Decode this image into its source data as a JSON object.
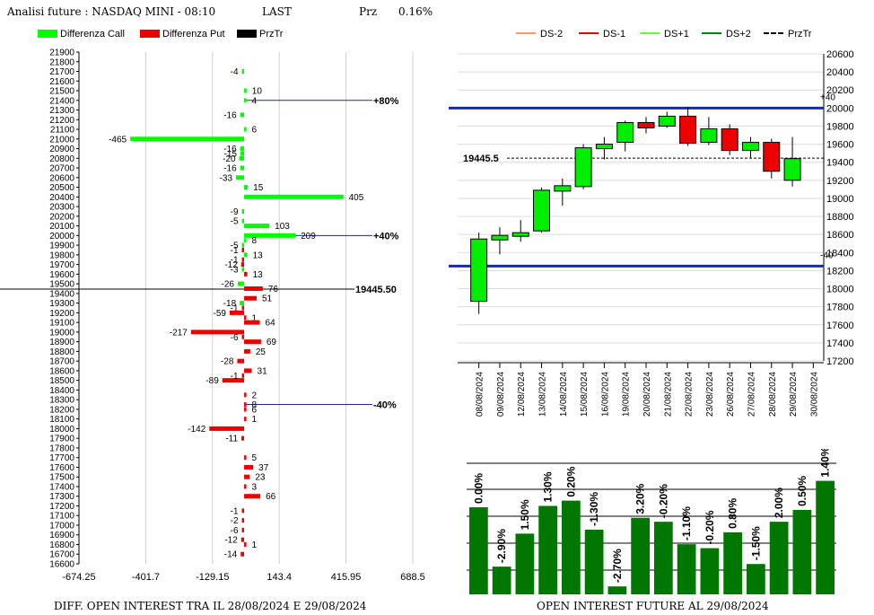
{
  "header": {
    "title": "Analisi future : NASDAQ MINI - 08:10",
    "last_label": "LAST",
    "prz_label": "Prz",
    "prz_value": "0.16%"
  },
  "left_legend": [
    {
      "label": "Differenza Call",
      "color": "#00ff00"
    },
    {
      "label": "Differenza Put",
      "color": "#ee0000"
    },
    {
      "label": "PrzTr",
      "color": "#000000"
    }
  ],
  "right_legend": [
    {
      "label": "DS-2",
      "color": "#ff9966",
      "dashed": false
    },
    {
      "label": "DS-1",
      "color": "#ee0000",
      "dashed": false
    },
    {
      "label": "DS+1",
      "color": "#66ff33",
      "dashed": false
    },
    {
      "label": "DS+2",
      "color": "#008800",
      "dashed": false
    },
    {
      "label": "PrzTr",
      "color": "#000000",
      "dashed": true
    }
  ],
  "captions": {
    "left": "DIFF. OPEN INTEREST TRA IL 28/08/2024 E 29/08/2024",
    "right": "OPEN INTEREST FUTURE AL 29/08/2024"
  },
  "chart_data": [
    {
      "type": "bar",
      "orientation": "horizontal",
      "strike_ticks": [
        21900,
        21800,
        21700,
        21600,
        21500,
        21400,
        21300,
        21200,
        21100,
        21000,
        20900,
        20800,
        20700,
        20600,
        20500,
        20400,
        20300,
        20200,
        20100,
        20000,
        19900,
        19800,
        19700,
        19600,
        19500,
        19400,
        19300,
        19200,
        19100,
        19000,
        18900,
        18800,
        18700,
        18600,
        18500,
        18400,
        18300,
        18200,
        18100,
        18000,
        17900,
        17800,
        17700,
        17600,
        17500,
        17400,
        17300,
        17200,
        17100,
        17000,
        16900,
        16800,
        16700,
        16600
      ],
      "x_tick_labels": [
        "-674.25",
        "-401.7",
        "-129.15",
        "143.4",
        "415.95",
        "688.5"
      ],
      "xlim": [
        -674.25,
        688.5
      ],
      "ylim": [
        16600,
        21900
      ],
      "calls": [
        {
          "strike": 21700,
          "value": -4
        },
        {
          "strike": 21500,
          "value": 10
        },
        {
          "strike": 21400,
          "value": 4
        },
        {
          "strike": 21250,
          "value": -16
        },
        {
          "strike": 21100,
          "value": 6
        },
        {
          "strike": 21000,
          "value": -465
        },
        {
          "strike": 20900,
          "value": -16
        },
        {
          "strike": 20850,
          "value": -15
        },
        {
          "strike": 20800,
          "value": -20
        },
        {
          "strike": 20700,
          "value": -16
        },
        {
          "strike": 20600,
          "value": -33
        },
        {
          "strike": 20500,
          "value": 15
        },
        {
          "strike": 20400,
          "value": 405
        },
        {
          "strike": 20250,
          "value": -9
        },
        {
          "strike": 20150,
          "value": -5
        },
        {
          "strike": 20100,
          "value": 103
        },
        {
          "strike": 20000,
          "value": 209
        },
        {
          "strike": 19950,
          "value": 8
        },
        {
          "strike": 19900,
          "value": -5
        },
        {
          "strike": 19800,
          "value": 13
        },
        {
          "strike": 19650,
          "value": -3
        },
        {
          "strike": 19500,
          "value": -26
        },
        {
          "strike": 19300,
          "value": -18
        }
      ],
      "puts": [
        {
          "strike": 19850,
          "value": -1
        },
        {
          "strike": 19750,
          "value": -1
        },
        {
          "strike": 19700,
          "value": -12
        },
        {
          "strike": 19600,
          "value": 13
        },
        {
          "strike": 19450,
          "value": 76
        },
        {
          "strike": 19350,
          "value": 51
        },
        {
          "strike": 19250,
          "value": -1
        },
        {
          "strike": 19200,
          "value": -59
        },
        {
          "strike": 19150,
          "value": 1
        },
        {
          "strike": 19100,
          "value": 64
        },
        {
          "strike": 19000,
          "value": -217
        },
        {
          "strike": 18950,
          "value": -6
        },
        {
          "strike": 18900,
          "value": 69
        },
        {
          "strike": 18800,
          "value": 25
        },
        {
          "strike": 18700,
          "value": -28
        },
        {
          "strike": 18600,
          "value": 31
        },
        {
          "strike": 18500,
          "value": -89
        },
        {
          "strike": 18550,
          "value": -1
        },
        {
          "strike": 18350,
          "value": 2
        },
        {
          "strike": 18250,
          "value": 8
        },
        {
          "strike": 18200,
          "value": 6
        },
        {
          "strike": 18100,
          "value": 1
        },
        {
          "strike": 18000,
          "value": -142
        },
        {
          "strike": 17900,
          "value": -11
        },
        {
          "strike": 17700,
          "value": 5
        },
        {
          "strike": 17600,
          "value": 37
        },
        {
          "strike": 17500,
          "value": 23
        },
        {
          "strike": 17400,
          "value": 3
        },
        {
          "strike": 17300,
          "value": 66
        },
        {
          "strike": 17150,
          "value": -1
        },
        {
          "strike": 17050,
          "value": -2
        },
        {
          "strike": 16950,
          "value": -6
        },
        {
          "strike": 16850,
          "value": -12
        },
        {
          "strike": 16800,
          "value": 1
        },
        {
          "strike": 16700,
          "value": -14
        }
      ],
      "przTr": {
        "value": 19445.5,
        "label": "19445.50"
      },
      "levels": [
        {
          "label": "+80%",
          "strike": 21400
        },
        {
          "label": "+40%",
          "strike": 20000
        },
        {
          "label": "-40%",
          "strike": 18250
        }
      ]
    },
    {
      "type": "candlestick",
      "dates": [
        "08/08/2024",
        "09/08/2024",
        "12/08/2024",
        "13/08/2024",
        "14/08/2024",
        "15/08/2024",
        "16/08/2024",
        "19/08/2024",
        "20/08/2024",
        "21/08/2024",
        "22/08/2024",
        "23/08/2024",
        "26/08/2024",
        "27/08/2024",
        "28/08/2024",
        "29/08/2024",
        "30/08/2024"
      ],
      "candles": [
        {
          "open": 17860,
          "close": 18550,
          "high": 18620,
          "low": 17720
        },
        {
          "open": 18540,
          "close": 18590,
          "high": 18680,
          "low": 18380
        },
        {
          "open": 18580,
          "close": 18620,
          "high": 18760,
          "low": 18520
        },
        {
          "open": 18640,
          "close": 19090,
          "high": 19120,
          "low": 18620
        },
        {
          "open": 19080,
          "close": 19140,
          "high": 19220,
          "low": 18920
        },
        {
          "open": 19130,
          "close": 19560,
          "high": 19600,
          "low": 19100
        },
        {
          "open": 19550,
          "close": 19600,
          "high": 19680,
          "low": 19430
        },
        {
          "open": 19620,
          "close": 19840,
          "high": 19860,
          "low": 19520
        },
        {
          "open": 19840,
          "close": 19780,
          "high": 19900,
          "low": 19720
        },
        {
          "open": 19800,
          "close": 19910,
          "high": 19960,
          "low": 19780
        },
        {
          "open": 19910,
          "close": 19610,
          "high": 20010,
          "low": 19580
        },
        {
          "open": 19620,
          "close": 19770,
          "high": 19900,
          "low": 19590
        },
        {
          "open": 19770,
          "close": 19530,
          "high": 19820,
          "low": 19480
        },
        {
          "open": 19530,
          "close": 19620,
          "high": 19680,
          "low": 19450
        },
        {
          "open": 19620,
          "close": 19300,
          "high": 19660,
          "low": 19220
        },
        {
          "open": 19200,
          "close": 19440,
          "high": 19680,
          "low": 19130
        },
        null
      ],
      "ylim": [
        17200,
        20600
      ],
      "y_ticks": [
        17200,
        17400,
        17600,
        17800,
        18000,
        18200,
        18400,
        18600,
        18800,
        19000,
        19200,
        19400,
        19600,
        19800,
        20000,
        20200,
        20400,
        20600
      ],
      "upper_line": {
        "value": 20000,
        "label": "+40"
      },
      "lower_line": {
        "value": 18250,
        "label": "-40"
      },
      "przTr": {
        "value": 19445.5,
        "label": "19445.5"
      }
    },
    {
      "type": "bar",
      "values": [
        0.0,
        -2.9,
        1.5,
        1.3,
        0.2,
        -1.3,
        -2.7,
        3.2,
        -0.2,
        -1.1,
        -0.2,
        0.8,
        -1.5,
        2.0,
        0.5,
        1.4
      ],
      "labels": [
        "0.00%",
        "-2.90%",
        "1.50%",
        "1.30%",
        "0.20%",
        "-1.30%",
        "-2.70%",
        "3.20%",
        "-0.20%",
        "-1.10%",
        "-0.20%",
        "0.80%",
        "-1.50%",
        "2.00%",
        "0.50%",
        "1.40%"
      ],
      "relative_heights": [
        0.66,
        0.21,
        0.46,
        0.67,
        0.71,
        0.49,
        0.06,
        0.58,
        0.55,
        0.38,
        0.35,
        0.47,
        0.23,
        0.55,
        0.64,
        0.86
      ],
      "color": "#007700"
    }
  ]
}
